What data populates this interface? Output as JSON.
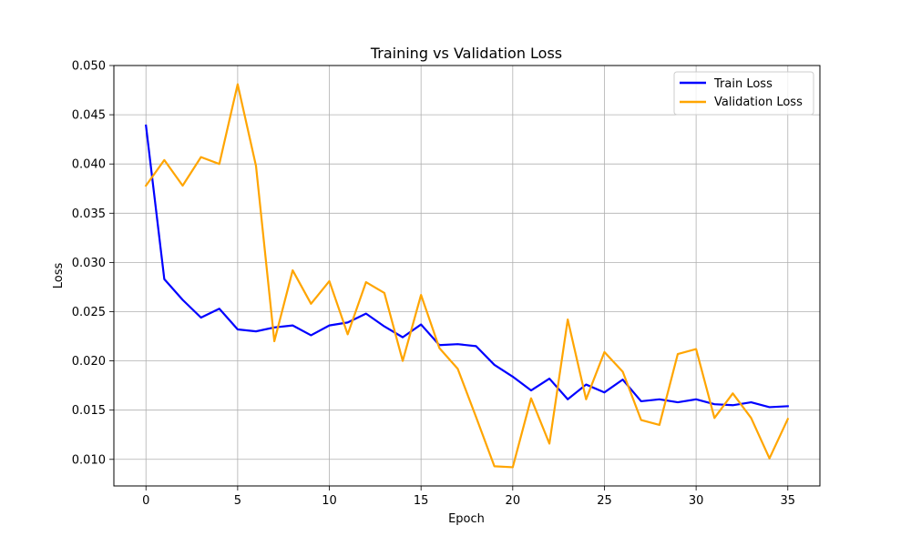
{
  "chart_data": {
    "type": "line",
    "title": "Training vs Validation Loss",
    "xlabel": "Epoch",
    "ylabel": "Loss",
    "xlim": [
      -1.75,
      36.75
    ],
    "ylim": [
      0.0073,
      0.05
    ],
    "xticks": [
      0,
      5,
      10,
      15,
      20,
      25,
      30,
      35
    ],
    "xtick_labels": [
      "0",
      "5",
      "10",
      "15",
      "20",
      "25",
      "30",
      "35"
    ],
    "yticks": [
      0.01,
      0.015,
      0.02,
      0.025,
      0.03,
      0.035,
      0.04,
      0.045,
      0.05
    ],
    "ytick_labels": [
      "0.010",
      "0.015",
      "0.020",
      "0.025",
      "0.030",
      "0.035",
      "0.040",
      "0.045",
      "0.050"
    ],
    "grid": true,
    "legend": "top-right",
    "x": [
      0,
      1,
      2,
      3,
      4,
      5,
      6,
      7,
      8,
      9,
      10,
      11,
      12,
      13,
      14,
      15,
      16,
      17,
      18,
      19,
      20,
      21,
      22,
      23,
      24,
      25,
      26,
      27,
      28,
      29,
      30,
      31,
      32,
      33,
      34,
      35
    ],
    "series": [
      {
        "name": "Train Loss",
        "color": "#0000ff",
        "values": [
          0.0439,
          0.0283,
          0.0262,
          0.0244,
          0.0253,
          0.0232,
          0.023,
          0.0234,
          0.0236,
          0.0226,
          0.0236,
          0.0239,
          0.0248,
          0.0235,
          0.0224,
          0.0237,
          0.0216,
          0.0217,
          0.0215,
          0.0196,
          0.0184,
          0.017,
          0.0182,
          0.0161,
          0.0176,
          0.0168,
          0.0181,
          0.0159,
          0.0161,
          0.0158,
          0.0161,
          0.0156,
          0.0155,
          0.0158,
          0.0153,
          0.0154
        ]
      },
      {
        "name": "Validation Loss",
        "color": "#ffa500",
        "values": [
          0.0378,
          0.0404,
          0.0378,
          0.0407,
          0.04,
          0.0481,
          0.0398,
          0.022,
          0.0292,
          0.0258,
          0.0281,
          0.0227,
          0.028,
          0.0269,
          0.02,
          0.0267,
          0.0213,
          0.0192,
          0.0143,
          0.0093,
          0.0092,
          0.0162,
          0.0116,
          0.0242,
          0.0161,
          0.0209,
          0.0189,
          0.014,
          0.0135,
          0.0207,
          0.0212,
          0.0142,
          0.0167,
          0.0142,
          0.0101,
          0.0141
        ]
      }
    ]
  }
}
